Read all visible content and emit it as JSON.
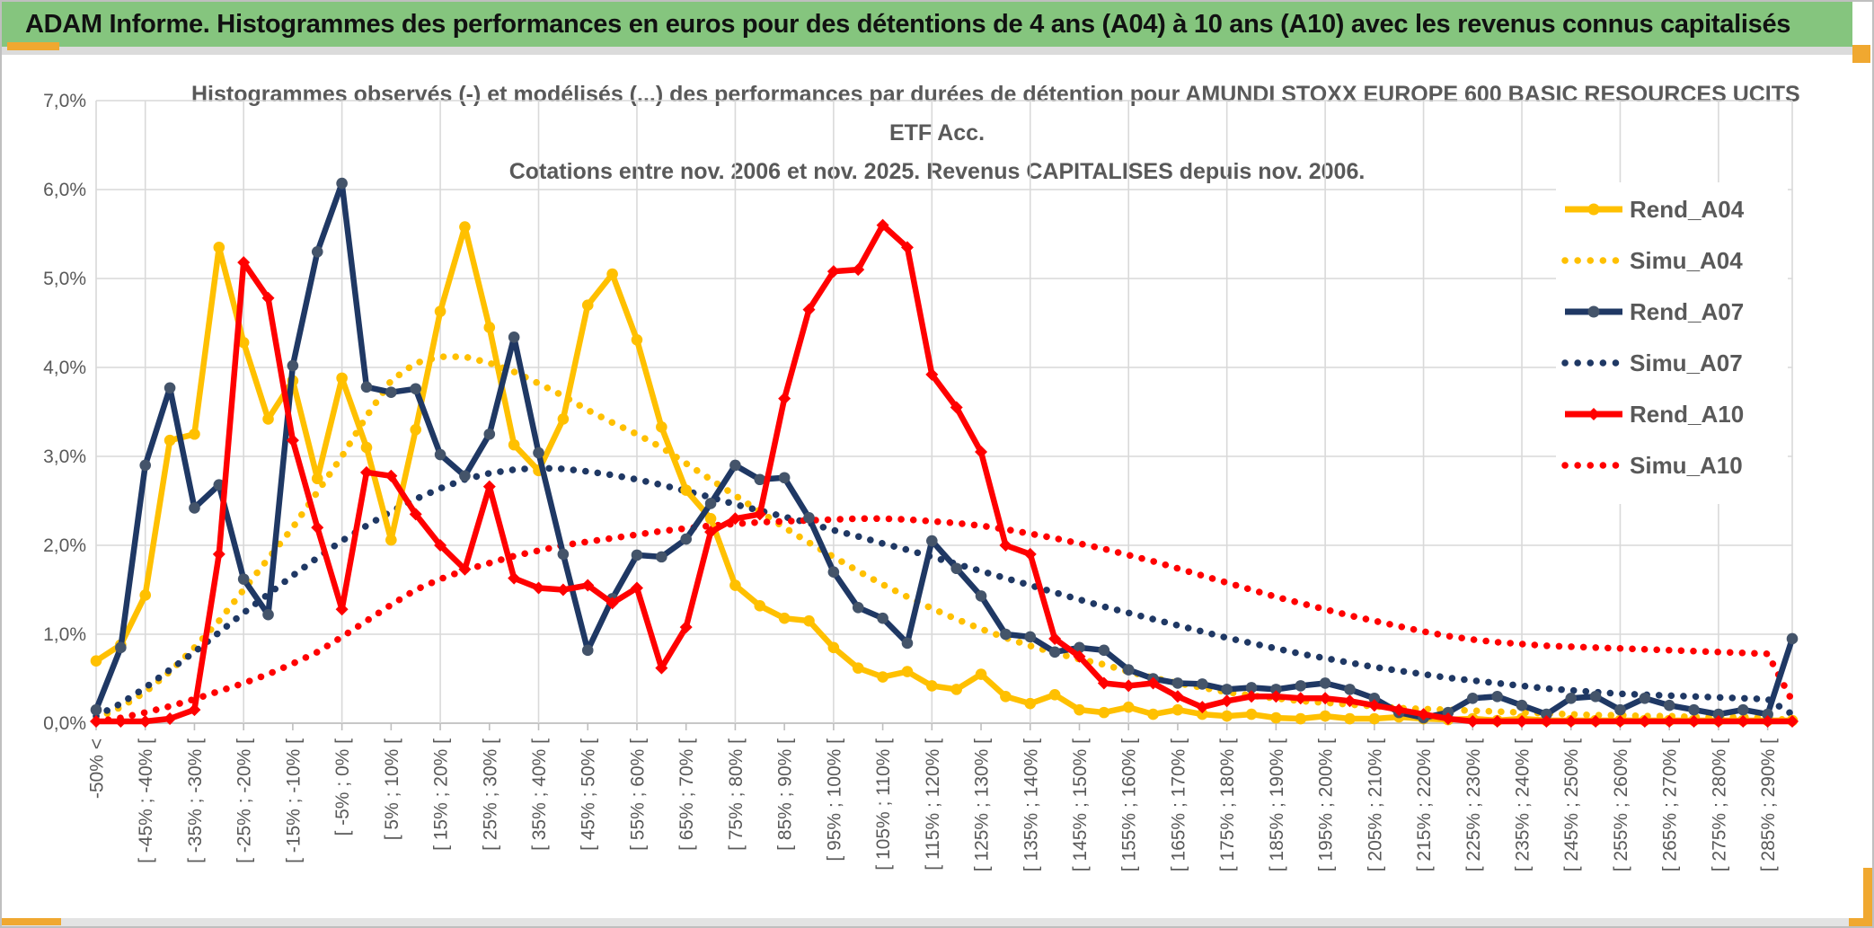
{
  "banner": {
    "title": "ADAM Informe. Histogrammes des performances en euros pour des détentions de 4 ans (A04) à 10 ans (A10) avec les revenus connus capitalisés"
  },
  "chart": {
    "title_line1": "Histogrammes observés (-) et modélisés (...) des performances par durées de détention pour AMUNDI STOXX EUROPE 600 BASIC RESOURCES UCITS",
    "title_line2": "ETF Acc.",
    "title_line3": "Cotations entre nov. 2006 et nov. 2025. Revenus CAPITALISES depuis nov. 2006.",
    "y_axis": {
      "tick_labels": [
        "0,0%",
        "1,0%",
        "2,0%",
        "3,0%",
        "4,0%",
        "5,0%",
        "6,0%",
        "7,0%"
      ]
    },
    "colors": {
      "banner_green": "#85c57e",
      "accent_orange": "#f0a830",
      "grid": "#d9d9d9",
      "axis_line": "#bfbfbf",
      "text_gray": "#595959",
      "series_yellow": "#FFC000",
      "series_navy": "#1F3864",
      "series_navy_marker": "#44546A",
      "series_red": "#FF0000"
    }
  },
  "chart_data": {
    "type": "line",
    "title": "Histogrammes observés (-) et modélisés (...) des performances par durées de détention pour AMUNDI STOXX EUROPE 600 BASIC RESOURCES UCITS ETF Acc. Cotations entre nov. 2006 et nov. 2025. Revenus CAPITALISES depuis nov. 2006.",
    "ylim": [
      0,
      7
    ],
    "y_unit": "percent",
    "grid": true,
    "legend_position": "right",
    "bins": 70,
    "bins_between_labels": 2,
    "x_tick_labels": [
      "-50% <",
      "[ -45% ; -40% [",
      "[ -35% ; -30% [",
      "[ -25% ; -20% [",
      "[ -15% ; -10% [",
      "[ -5% ; 0% [",
      "[ 5% ; 10% [",
      "[ 15% ; 20% [",
      "[ 25% ; 30% [",
      "[ 35% ; 40% [",
      "[ 45% ; 50% [",
      "[ 55% ; 60% [",
      "[ 65% ; 70% [",
      "[ 75% ; 80% [",
      "[ 85% ; 90% [",
      "[ 95% ; 100% [",
      "[ 105% ; 110% [",
      "[ 115% ; 120% [",
      "[ 125% ; 130% [",
      "[ 135% ; 140% [",
      "[ 145% ; 150% [",
      "[ 155% ; 160% [",
      "[ 165% ; 170% [",
      "[ 175% ; 180% [",
      "[ 185% ; 190% [",
      "[ 195% ; 200% [",
      "[ 205% ; 210% [",
      "[ 215% ; 220% [",
      "[ 225% ; 230% [",
      "[ 235% ; 240% [",
      "[ 245% ; 250% [",
      "[ 255% ; 260% [",
      "[ 265% ; 270% [",
      "[ 275% ; 280% [",
      "[ 285% ; 290% ["
    ],
    "series": [
      {
        "name": "Rend_A04",
        "color": "#FFC000",
        "style": "solid",
        "marker": "circle",
        "marker_color": "#FFC000",
        "values": [
          0.7,
          0.88,
          1.44,
          3.18,
          3.25,
          5.35,
          4.28,
          3.42,
          3.85,
          2.75,
          3.88,
          3.1,
          2.06,
          3.3,
          4.63,
          5.58,
          4.45,
          3.13,
          2.84,
          3.42,
          4.7,
          5.05,
          4.31,
          3.33,
          2.62,
          2.3,
          1.55,
          1.32,
          1.18,
          1.15,
          0.85,
          0.62,
          0.52,
          0.58,
          0.42,
          0.38,
          0.55,
          0.3,
          0.22,
          0.32,
          0.15,
          0.12,
          0.18,
          0.1,
          0.15,
          0.1,
          0.08,
          0.1,
          0.06,
          0.05,
          0.08,
          0.05,
          0.05,
          0.07,
          0.05,
          0.04,
          0.05,
          0.03,
          0.05,
          0.03,
          0.03,
          0.03,
          0.03,
          0.03,
          0.03,
          0.03,
          0.03,
          0.03,
          0.03,
          0.03
        ]
      },
      {
        "name": "Simu_A04",
        "color": "#FFC000",
        "style": "dotted",
        "values": [
          0.05,
          0.18,
          0.35,
          0.58,
          0.85,
          1.15,
          1.5,
          1.85,
          2.2,
          2.6,
          3.0,
          3.45,
          3.85,
          4.05,
          4.12,
          4.12,
          4.05,
          3.95,
          3.82,
          3.68,
          3.52,
          3.38,
          3.25,
          3.1,
          2.92,
          2.74,
          2.56,
          2.38,
          2.2,
          2.03,
          1.87,
          1.71,
          1.56,
          1.42,
          1.29,
          1.17,
          1.06,
          0.96,
          0.87,
          0.79,
          0.72,
          0.66,
          0.58,
          0.51,
          0.45,
          0.4,
          0.35,
          0.31,
          0.28,
          0.25,
          0.23,
          0.21,
          0.19,
          0.17,
          0.16,
          0.15,
          0.14,
          0.13,
          0.12,
          0.11,
          0.1,
          0.09,
          0.09,
          0.08,
          0.08,
          0.07,
          0.07,
          0.07,
          0.06,
          0.03
        ]
      },
      {
        "name": "Rend_A07",
        "color": "#1F3864",
        "style": "solid",
        "marker": "circle",
        "marker_color": "#44546A",
        "values": [
          0.15,
          0.85,
          2.9,
          3.77,
          2.42,
          2.68,
          1.62,
          1.22,
          4.02,
          5.3,
          6.07,
          3.78,
          3.72,
          3.76,
          3.02,
          2.78,
          3.25,
          4.34,
          3.04,
          1.9,
          0.82,
          1.4,
          1.89,
          1.87,
          2.07,
          2.47,
          2.9,
          2.74,
          2.76,
          2.31,
          1.7,
          1.3,
          1.18,
          0.9,
          2.05,
          1.74,
          1.43,
          1.0,
          0.97,
          0.8,
          0.85,
          0.82,
          0.6,
          0.5,
          0.45,
          0.44,
          0.38,
          0.4,
          0.38,
          0.42,
          0.45,
          0.38,
          0.28,
          0.12,
          0.06,
          0.12,
          0.28,
          0.3,
          0.2,
          0.1,
          0.28,
          0.3,
          0.15,
          0.28,
          0.2,
          0.15,
          0.1,
          0.15,
          0.1,
          0.95
        ]
      },
      {
        "name": "Simu_A07",
        "color": "#1F3864",
        "style": "dotted",
        "values": [
          0.08,
          0.22,
          0.4,
          0.6,
          0.8,
          1.02,
          1.24,
          1.45,
          1.66,
          1.86,
          2.05,
          2.22,
          2.38,
          2.52,
          2.64,
          2.74,
          2.81,
          2.85,
          2.87,
          2.86,
          2.83,
          2.79,
          2.74,
          2.68,
          2.61,
          2.54,
          2.46,
          2.39,
          2.32,
          2.25,
          2.17,
          2.1,
          2.02,
          1.95,
          1.87,
          1.79,
          1.71,
          1.63,
          1.55,
          1.47,
          1.39,
          1.31,
          1.24,
          1.17,
          1.1,
          1.03,
          0.96,
          0.9,
          0.84,
          0.78,
          0.73,
          0.68,
          0.63,
          0.59,
          0.55,
          0.51,
          0.48,
          0.45,
          0.42,
          0.39,
          0.37,
          0.35,
          0.33,
          0.32,
          0.31,
          0.3,
          0.29,
          0.28,
          0.27,
          0.1
        ]
      },
      {
        "name": "Rend_A10",
        "color": "#FF0000",
        "style": "solid",
        "marker": "diamond",
        "marker_color": "#FF0000",
        "values": [
          0.02,
          0.02,
          0.02,
          0.05,
          0.15,
          1.9,
          5.18,
          4.78,
          3.18,
          2.2,
          1.28,
          2.82,
          2.78,
          2.35,
          2.0,
          1.73,
          2.66,
          1.63,
          1.52,
          1.5,
          1.55,
          1.35,
          1.52,
          0.62,
          1.08,
          2.15,
          2.3,
          2.35,
          3.65,
          4.65,
          5.08,
          5.1,
          5.6,
          5.35,
          3.92,
          3.55,
          3.05,
          2.0,
          1.9,
          0.95,
          0.75,
          0.45,
          0.42,
          0.45,
          0.3,
          0.18,
          0.25,
          0.3,
          0.3,
          0.28,
          0.28,
          0.25,
          0.2,
          0.15,
          0.1,
          0.05,
          0.02,
          0.02,
          0.02,
          0.02,
          0.02,
          0.02,
          0.02,
          0.02,
          0.02,
          0.02,
          0.02,
          0.02,
          0.02,
          0.02
        ]
      },
      {
        "name": "Simu_A10",
        "color": "#FF0000",
        "style": "dotted",
        "values": [
          0.02,
          0.06,
          0.12,
          0.19,
          0.27,
          0.36,
          0.45,
          0.55,
          0.67,
          0.8,
          0.97,
          1.15,
          1.33,
          1.5,
          1.62,
          1.72,
          1.8,
          1.88,
          1.94,
          2.0,
          2.04,
          2.08,
          2.12,
          2.16,
          2.19,
          2.22,
          2.24,
          2.26,
          2.27,
          2.28,
          2.29,
          2.3,
          2.3,
          2.29,
          2.27,
          2.25,
          2.22,
          2.18,
          2.13,
          2.08,
          2.02,
          1.96,
          1.89,
          1.82,
          1.74,
          1.66,
          1.58,
          1.5,
          1.42,
          1.35,
          1.28,
          1.21,
          1.15,
          1.09,
          1.03,
          0.98,
          0.94,
          0.91,
          0.89,
          0.87,
          0.86,
          0.85,
          0.84,
          0.83,
          0.82,
          0.81,
          0.8,
          0.79,
          0.78,
          0.25
        ]
      }
    ]
  }
}
